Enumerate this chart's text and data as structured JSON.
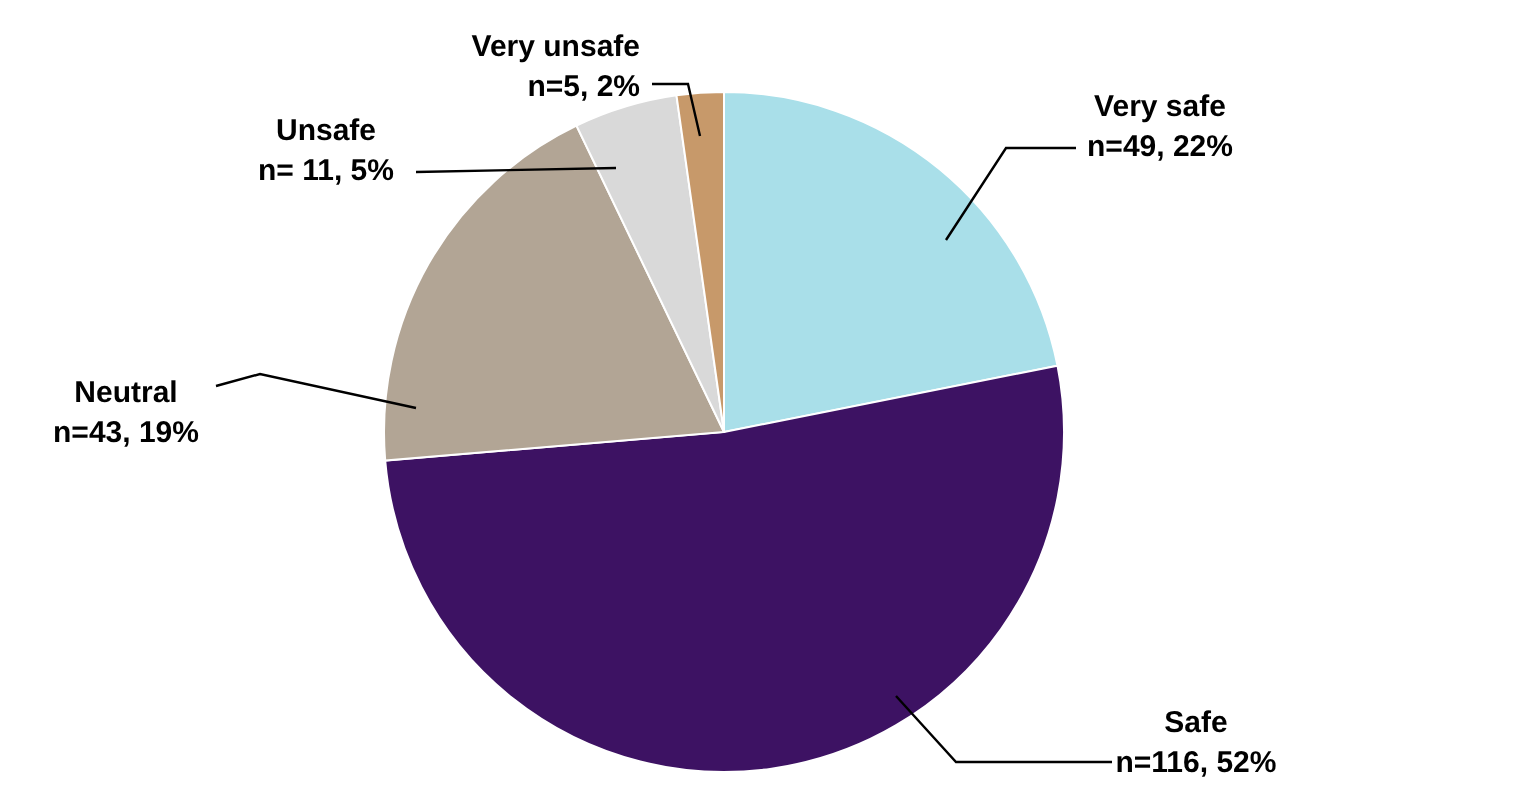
{
  "chart_data": {
    "type": "pie",
    "categories": [
      "Very safe",
      "Safe",
      "Neutral",
      "Unsafe",
      "Very unsafe"
    ],
    "values": [
      49,
      116,
      43,
      11,
      5
    ],
    "value_labels": [
      "n=49, 22%",
      "n=116, 52%",
      "n=43, 19%",
      "n= 11, 5%",
      "n=5, 2%"
    ],
    "colors": [
      "#a9dfe9",
      "#3d1263",
      "#b2a595",
      "#d9d9d9",
      "#c7996a"
    ],
    "legend": false
  }
}
